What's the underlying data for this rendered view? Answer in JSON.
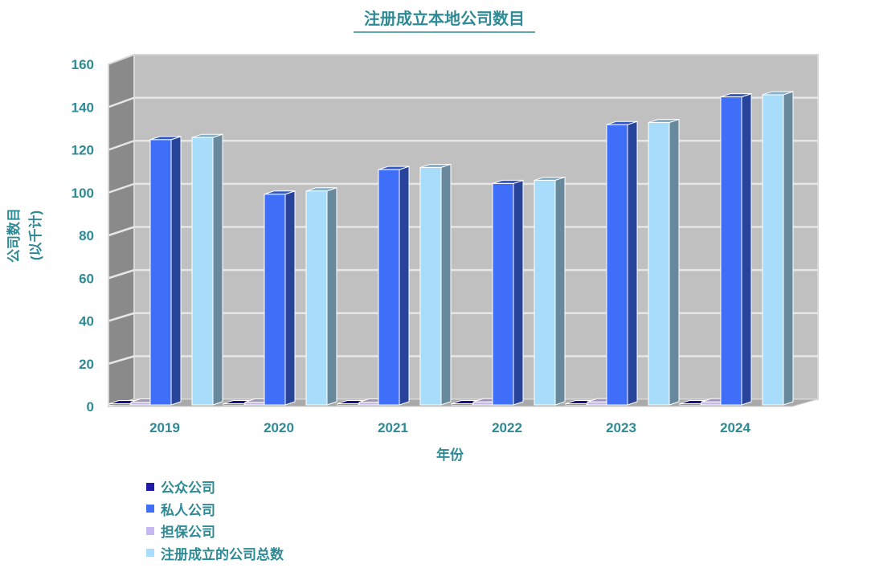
{
  "chart_data": {
    "type": "bar",
    "title": "注册成立本地公司数目",
    "xlabel": "年份",
    "ylabel": "公司数目",
    "ylabel_unit": "(以千计)",
    "categories": [
      "2019",
      "2020",
      "2021",
      "2022",
      "2023",
      "2024"
    ],
    "ylim": [
      0,
      160
    ],
    "yticks": [
      0,
      20,
      40,
      60,
      80,
      100,
      120,
      140,
      160
    ],
    "grid": true,
    "legend_position": "bottom-left",
    "three_d": true,
    "series": [
      {
        "name": "公众公司",
        "color": "#1f1aa8",
        "values": [
          0.1,
          0.1,
          0.1,
          0.1,
          0.1,
          0.1
        ]
      },
      {
        "name": "私人公司",
        "color": "#3f6ef8",
        "values": [
          124,
          98.5,
          110,
          103.5,
          131,
          144
        ]
      },
      {
        "name": "担保公司",
        "color": "#c6b8f0",
        "values": [
          1.3,
          1.3,
          1.3,
          1.4,
          1.4,
          1.4
        ]
      },
      {
        "name": "注册成立的公司总数",
        "color": "#a8dcfb",
        "values": [
          125,
          100,
          111,
          105,
          132,
          145
        ]
      }
    ]
  }
}
